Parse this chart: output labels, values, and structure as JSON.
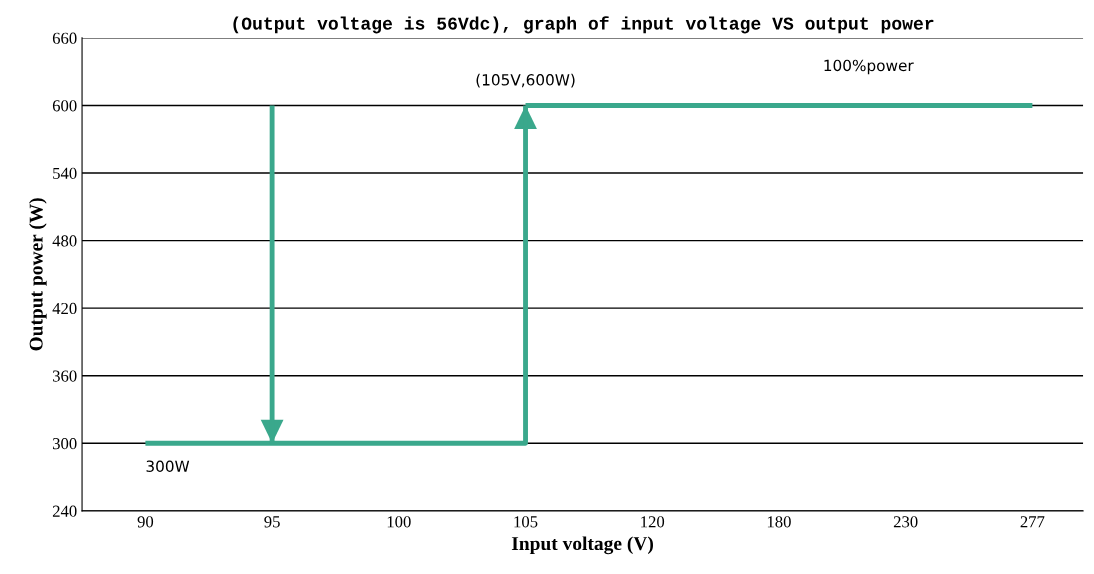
{
  "chart_data": {
    "type": "line",
    "title": "(Output voltage is 56Vdc), graph of input voltage VS output power",
    "xlabel": "Input voltage (V)",
    "ylabel": "Output power (W)",
    "categories": [
      "90",
      "95",
      "100",
      "105",
      "120",
      "180",
      "230",
      "277"
    ],
    "series": [
      {
        "x": [
          "90",
          "105",
          "105"
        ],
        "values": [
          300,
          300,
          600
        ],
        "color": "#3aa88c"
      },
      {
        "x": [
          "105",
          "277"
        ],
        "values": [
          600,
          600
        ],
        "color": "#3aa88c"
      },
      {
        "x": [
          "95",
          "95"
        ],
        "values": [
          600,
          300
        ],
        "color": "#3aa88c"
      }
    ],
    "ylim": [
      240,
      660
    ],
    "yticks": [
      240,
      300,
      360,
      420,
      480,
      540,
      600,
      660
    ],
    "grid": "y",
    "legend": false,
    "annotations": [
      {
        "text": "(105V,600W)",
        "x": "105",
        "y": 600
      },
      {
        "text": "300W",
        "x": "90",
        "y": 300
      },
      "100%power"
    ]
  }
}
